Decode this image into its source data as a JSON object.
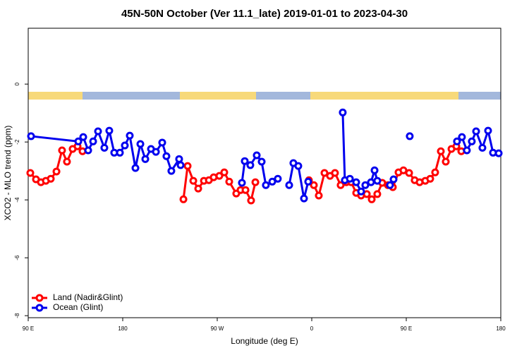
{
  "chart_data": {
    "type": "line",
    "title": "45N-50N October (Ver 11.1_late)   2019-01-01 to 2023-04-30",
    "xlabel": "Longitude (deg E)",
    "ylabel": "XCO2 - MLO trend (ppm)",
    "xlim": [
      90,
      540
    ],
    "ylim": [
      -8.07,
      1.93
    ],
    "xticks": [
      {
        "value": 90,
        "label": "90 E"
      },
      {
        "value": 180,
        "label": "180"
      },
      {
        "value": 270,
        "label": "90 W"
      },
      {
        "value": 360,
        "label": "0"
      },
      {
        "value": 450,
        "label": "90 E"
      },
      {
        "value": 540,
        "label": "180"
      }
    ],
    "yticks": [
      0,
      -2,
      -4,
      -6,
      -8
    ],
    "legend": "bottom-left",
    "series": [
      {
        "name": "Land (Nadir&Glint)",
        "color": "#ff0000",
        "x": [
          92.0,
          97.4,
          102.1,
          106.8,
          111.5,
          116.9,
          122.2,
          126.9,
          132.3,
          137.0,
          141.7,
          null,
          237.8,
          241.8,
          247.2,
          251.9,
          257.3,
          262.0,
          266.6,
          272.0,
          276.7,
          281.4,
          288.1,
          292.2,
          296.9,
          302.2,
          306.3,
          null,
          357.3,
          362.0,
          366.7,
          372.1,
          377.4,
          382.1,
          387.5,
          392.9,
          397.6,
          402.3,
          407.0,
          412.4,
          417.1,
          422.4,
          427.1,
          432.5,
          437.2,
          442.6,
          447.3,
          452.7,
          458.0,
          462.7,
          468.1,
          472.8,
          477.5,
          482.9,
          487.6,
          493.0,
          497.7,
          502.4
        ],
        "values": [
          -3.07,
          -3.29,
          -3.39,
          -3.34,
          -3.27,
          -3.02,
          -2.29,
          -2.68,
          -2.24,
          -2.15,
          -2.32,
          null,
          -3.98,
          -2.83,
          -3.34,
          -3.61,
          -3.34,
          -3.32,
          -3.22,
          -3.17,
          -3.05,
          -3.37,
          -3.78,
          -3.66,
          -3.66,
          -4.02,
          -3.39,
          null,
          -3.32,
          -3.49,
          -3.85,
          -3.07,
          -3.17,
          -3.07,
          -3.49,
          -3.39,
          -3.39,
          -3.76,
          -3.85,
          -3.8,
          -3.98,
          -3.8,
          -3.41,
          -3.49,
          -3.56,
          -3.05,
          -2.98,
          -3.07,
          -3.32,
          -3.39,
          -3.34,
          -3.27,
          -3.05,
          -2.32,
          -2.68,
          -2.24,
          -2.15,
          -2.32
        ]
      },
      {
        "name": "Ocean (Glint)",
        "color": "#0000ee",
        "x": [
          92.7,
          137.7,
          142.4,
          147.1,
          151.8,
          156.5,
          162.5,
          167.2,
          171.9,
          177.3,
          182.0,
          186.7,
          192.1,
          196.8,
          201.5,
          206.9,
          211.6,
          217.6,
          221.6,
          226.3,
          233.7,
          235.1,
          null,
          293.5,
          296.2,
          301.5,
          307.6,
          312.3,
          316.3,
          322.4,
          327.7,
          null,
          338.5,
          342.5,
          347.2,
          352.6,
          356.6,
          null,
          389.5,
          391.5,
          396.3,
          402.3,
          407.0,
          411.0,
          416.4,
          419.8,
          422.4,
          null,
          434.5,
          437.9,
          null,
          453.3,
          null,
          498.3,
          503.0,
          507.7,
          512.4,
          516.5,
          522.5,
          527.9,
          532.6,
          538.0
        ],
        "values": [
          -1.8,
          -1.98,
          -1.83,
          -2.29,
          -1.98,
          -1.63,
          -2.2,
          -1.61,
          -2.37,
          -2.37,
          -2.12,
          -1.78,
          -2.9,
          -2.07,
          -2.59,
          -2.24,
          -2.34,
          -2.02,
          -2.49,
          -3.0,
          -2.59,
          -2.8,
          null,
          -3.41,
          -2.66,
          -2.8,
          -2.46,
          -2.68,
          -3.49,
          -3.37,
          -3.27,
          null,
          -3.49,
          -2.73,
          -2.83,
          -3.95,
          -3.37,
          null,
          -0.98,
          -3.32,
          -3.27,
          -3.39,
          -3.71,
          -3.49,
          -3.39,
          -2.98,
          -3.34,
          null,
          -3.49,
          -3.29,
          null,
          -1.8,
          null,
          -1.98,
          -1.83,
          -2.29,
          -1.98,
          -1.63,
          -2.2,
          -1.61,
          -2.37,
          -2.39
        ]
      }
    ]
  }
}
